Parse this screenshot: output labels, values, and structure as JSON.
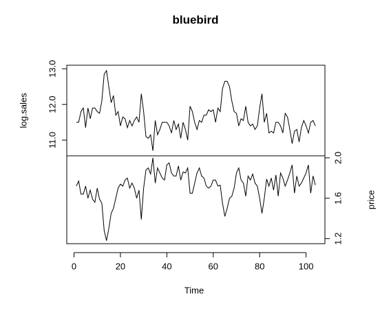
{
  "chart_data": {
    "type": "line",
    "title": "bluebird",
    "xlabel": "Time",
    "x": [
      1,
      2,
      3,
      4,
      5,
      6,
      7,
      8,
      9,
      10,
      11,
      12,
      13,
      14,
      15,
      16,
      17,
      18,
      19,
      20,
      21,
      22,
      23,
      24,
      25,
      26,
      27,
      28,
      29,
      30,
      31,
      32,
      33,
      34,
      35,
      36,
      37,
      38,
      39,
      40,
      41,
      42,
      43,
      44,
      45,
      46,
      47,
      48,
      49,
      50,
      51,
      52,
      53,
      54,
      55,
      56,
      57,
      58,
      59,
      60,
      61,
      62,
      63,
      64,
      65,
      66,
      67,
      68,
      69,
      70,
      71,
      72,
      73,
      74,
      75,
      76,
      77,
      78,
      79,
      80,
      81,
      82,
      83,
      84,
      85,
      86,
      87,
      88,
      89,
      90,
      91,
      92,
      93,
      94,
      95,
      96,
      97,
      98,
      99,
      100,
      101,
      102,
      103,
      104
    ],
    "xlim": [
      -3.12,
      108.12
    ],
    "xticks": [
      0,
      20,
      40,
      60,
      80,
      100
    ],
    "series": [
      {
        "name": "log.sales",
        "color": "#000000",
        "side": "left",
        "ylim": [
          10.56,
          13.1
        ],
        "yticks": [
          {
            "value": 11,
            "label": "11.0"
          },
          {
            "value": 12,
            "label": "12.0"
          },
          {
            "value": 13,
            "label": "13.0"
          }
        ],
        "values": [
          11.5,
          11.5,
          11.8,
          11.9,
          11.35,
          11.9,
          11.6,
          11.9,
          11.9,
          11.8,
          11.75,
          12.1,
          12.85,
          12.95,
          12.5,
          12.05,
          12.25,
          11.7,
          11.8,
          11.4,
          11.65,
          11.6,
          11.35,
          11.55,
          11.4,
          11.55,
          11.65,
          11.5,
          12.3,
          11.8,
          11.1,
          11.05,
          11.15,
          10.7,
          11.55,
          11.15,
          11.3,
          11.5,
          11.5,
          11.5,
          11.4,
          11.2,
          11.55,
          11.3,
          11.45,
          11.05,
          11.5,
          11.3,
          11.0,
          11.95,
          11.8,
          11.5,
          11.3,
          11.55,
          11.5,
          11.7,
          11.7,
          11.85,
          11.8,
          11.85,
          11.5,
          11.9,
          11.8,
          12.45,
          12.65,
          12.65,
          12.5,
          12.1,
          11.8,
          11.75,
          11.4,
          11.6,
          11.55,
          11.95,
          11.5,
          11.4,
          11.45,
          11.3,
          11.4,
          11.9,
          12.3,
          11.5,
          11.75,
          11.2,
          11.25,
          11.2,
          11.5,
          11.5,
          11.4,
          11.2,
          11.75,
          11.65,
          11.3,
          10.9,
          11.25,
          11.3,
          10.95,
          11.35,
          11.55,
          11.4,
          11.2,
          11.5,
          11.55,
          11.4
        ]
      },
      {
        "name": "price",
        "color": "#000000",
        "side": "right",
        "ylim": [
          1.15,
          2.02
        ],
        "yticks": [
          1.2,
          1.6,
          {
            "value": 2,
            "label": "2.0"
          }
        ],
        "values": [
          1.72,
          1.77,
          1.64,
          1.64,
          1.72,
          1.6,
          1.68,
          1.59,
          1.56,
          1.7,
          1.59,
          1.55,
          1.28,
          1.18,
          1.3,
          1.45,
          1.5,
          1.6,
          1.7,
          1.74,
          1.72,
          1.78,
          1.8,
          1.7,
          1.75,
          1.7,
          1.6,
          1.68,
          1.39,
          1.7,
          1.88,
          1.9,
          1.84,
          2.0,
          1.75,
          1.9,
          1.85,
          1.8,
          1.78,
          1.93,
          1.95,
          1.85,
          1.82,
          1.82,
          1.92,
          1.78,
          1.86,
          1.85,
          1.9,
          1.65,
          1.65,
          1.75,
          1.85,
          1.9,
          1.82,
          1.8,
          1.72,
          1.7,
          1.72,
          1.78,
          1.78,
          1.72,
          1.73,
          1.55,
          1.42,
          1.5,
          1.6,
          1.62,
          1.7,
          1.85,
          1.9,
          1.78,
          1.75,
          1.62,
          1.82,
          1.78,
          1.84,
          1.75,
          1.72,
          1.6,
          1.45,
          1.6,
          1.79,
          1.72,
          1.8,
          1.68,
          1.83,
          1.62,
          1.85,
          1.8,
          1.72,
          1.78,
          1.85,
          1.93,
          1.65,
          1.82,
          1.72,
          1.75,
          1.8,
          1.85,
          1.93,
          1.65,
          1.82,
          1.73
        ]
      }
    ]
  }
}
